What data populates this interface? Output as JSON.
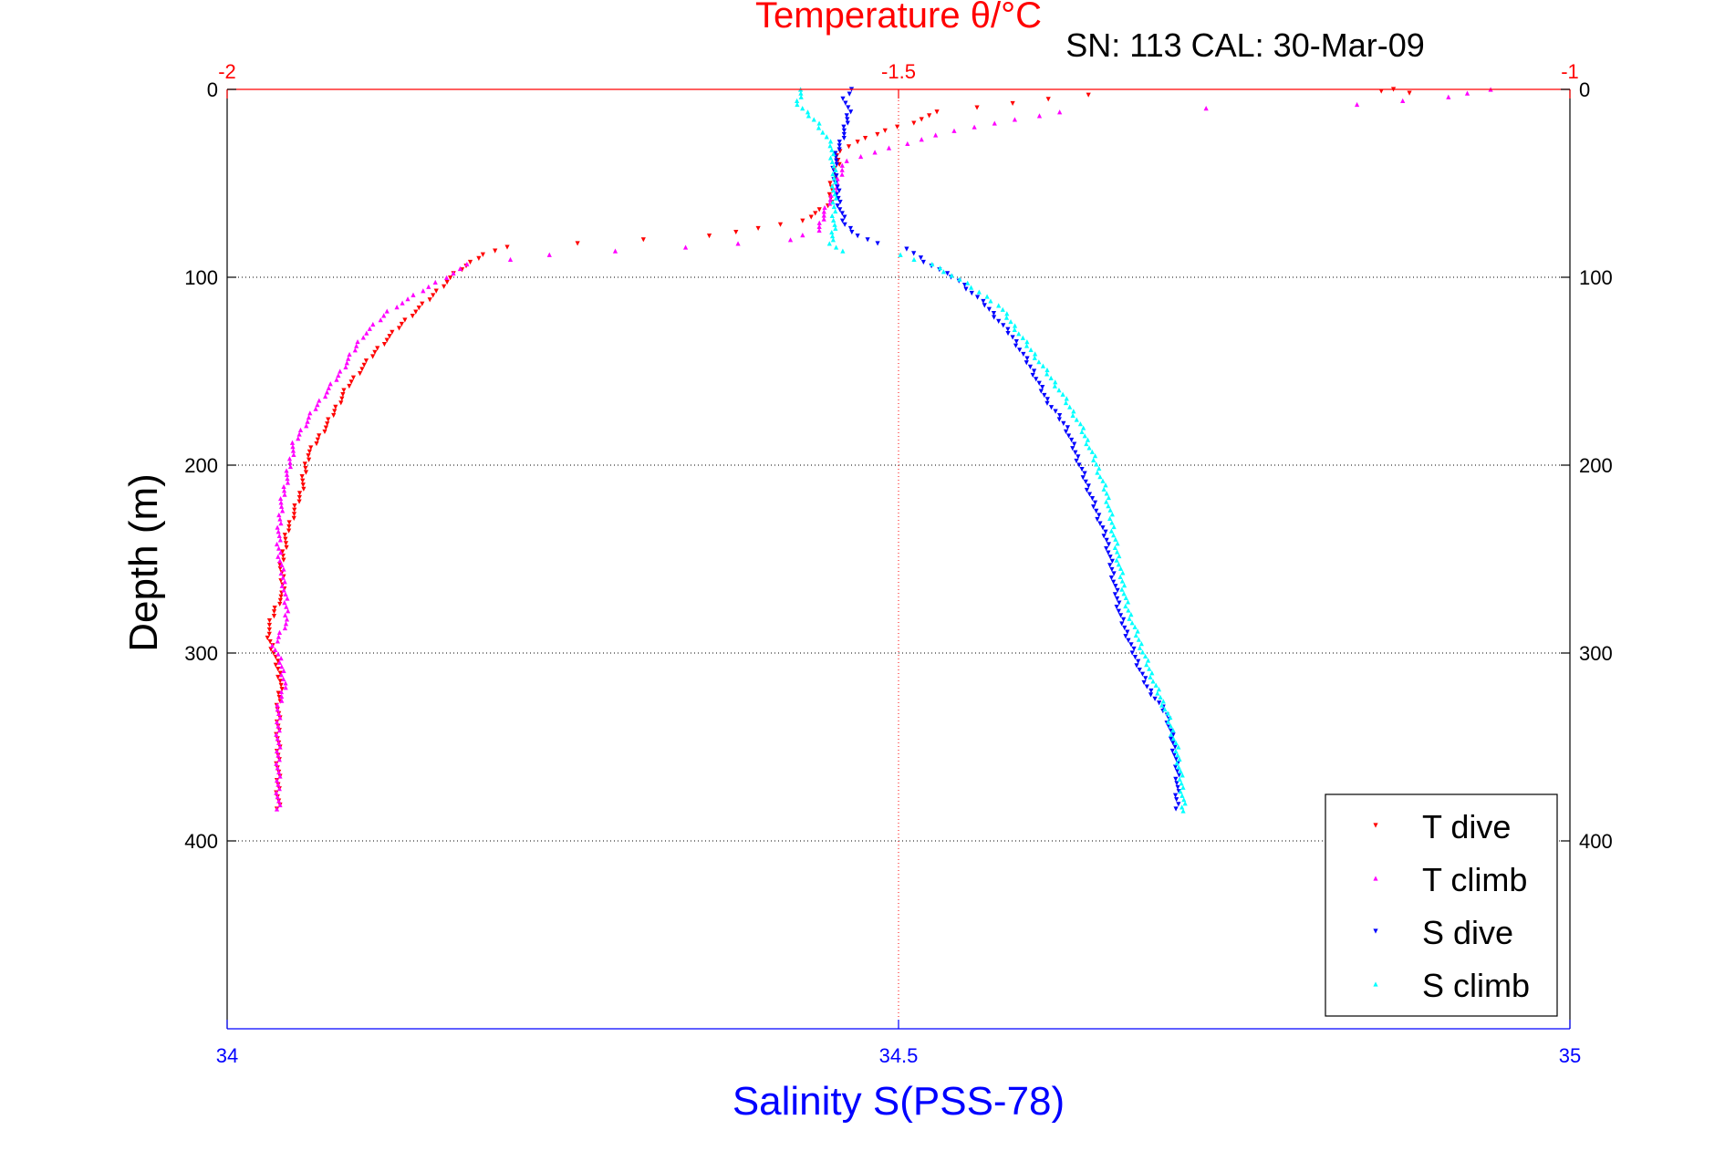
{
  "chart_data": {
    "type": "scatter",
    "title": "Temperature θ/°C",
    "subtitle": "SN: 113  CAL: 30-Mar-09",
    "xlabel_bottom": "Salinity S(PSS-78)",
    "xlabel_top": "",
    "ylabel": "Depth (m)",
    "x_bottom": {
      "label": "Salinity S(PSS-78)",
      "lim": [
        34,
        35
      ],
      "ticks": [
        34,
        34.5,
        35
      ],
      "tick_labels": [
        "34",
        "34.5",
        "35"
      ],
      "color": "#0000ff"
    },
    "x_top": {
      "label": "Temperature θ/°C",
      "lim": [
        -2,
        -1
      ],
      "ticks": [
        -2,
        -1.5,
        -1
      ],
      "tick_labels": [
        "-2",
        "-1.5",
        "-1"
      ],
      "color": "#ff0000"
    },
    "y": {
      "label": "Depth (m)",
      "lim": [
        0,
        500
      ],
      "reversed": true,
      "ticks": [
        0,
        100,
        200,
        300,
        400
      ],
      "tick_labels": [
        "0",
        "100",
        "200",
        "300",
        "400"
      ]
    },
    "grid": true,
    "legend_position": "bottom-right",
    "series": [
      {
        "name": "T dive",
        "axis": "temperature",
        "color": "#ff0000",
        "marker": "triangle-down",
        "points": [
          [
            -1.13,
            0
          ],
          [
            -1.14,
            1
          ],
          [
            -1.12,
            2
          ],
          [
            -1.36,
            3
          ],
          [
            -1.47,
            12
          ],
          [
            -1.49,
            18
          ],
          [
            -1.51,
            22
          ],
          [
            -1.53,
            28
          ],
          [
            -1.545,
            33
          ],
          [
            -1.545,
            40
          ],
          [
            -1.55,
            50
          ],
          [
            -1.55,
            60
          ],
          [
            -1.57,
            70
          ],
          [
            -1.64,
            78
          ],
          [
            -1.74,
            82
          ],
          [
            -1.79,
            84
          ],
          [
            -1.81,
            88
          ],
          [
            -1.83,
            98
          ],
          [
            -1.85,
            112
          ],
          [
            -1.87,
            125
          ],
          [
            -1.89,
            140
          ],
          [
            -1.91,
            158
          ],
          [
            -1.925,
            178
          ],
          [
            -1.94,
            195
          ],
          [
            -1.945,
            215
          ],
          [
            -1.955,
            235
          ],
          [
            -1.96,
            255
          ],
          [
            -1.958,
            268
          ],
          [
            -1.965,
            278
          ],
          [
            -1.97,
            290
          ],
          [
            -1.965,
            300
          ],
          [
            -1.96,
            315
          ],
          [
            -1.962,
            330
          ],
          [
            -1.962,
            350
          ],
          [
            -1.962,
            370
          ],
          [
            -1.962,
            383
          ]
        ]
      },
      {
        "name": "T climb",
        "axis": "temperature",
        "color": "#ff00ff",
        "marker": "triangle-up",
        "points": [
          [
            -1.06,
            0
          ],
          [
            -1.09,
            4
          ],
          [
            -1.16,
            8
          ],
          [
            -1.27,
            10
          ],
          [
            -1.38,
            12
          ],
          [
            -1.46,
            22
          ],
          [
            -1.54,
            38
          ],
          [
            -1.545,
            50
          ],
          [
            -1.555,
            65
          ],
          [
            -1.56,
            75
          ],
          [
            -1.58,
            80
          ],
          [
            -1.66,
            84
          ],
          [
            -1.76,
            88
          ],
          [
            -1.82,
            93
          ],
          [
            -1.85,
            105
          ],
          [
            -1.88,
            118
          ],
          [
            -1.9,
            132
          ],
          [
            -1.915,
            150
          ],
          [
            -1.935,
            170
          ],
          [
            -1.95,
            188
          ],
          [
            -1.955,
            205
          ],
          [
            -1.96,
            222
          ],
          [
            -1.962,
            242
          ],
          [
            -1.958,
            262
          ],
          [
            -1.955,
            282
          ],
          [
            -1.965,
            296
          ],
          [
            -1.96,
            305
          ],
          [
            -1.957,
            316
          ],
          [
            -1.962,
            330
          ],
          [
            -1.962,
            350
          ],
          [
            -1.962,
            370
          ],
          [
            -1.962,
            383
          ]
        ]
      },
      {
        "name": "S dive",
        "axis": "salinity",
        "color": "#0000ff",
        "marker": "triangle-down",
        "points": [
          [
            34.465,
            0
          ],
          [
            34.46,
            5
          ],
          [
            34.463,
            12
          ],
          [
            34.46,
            22
          ],
          [
            34.455,
            32
          ],
          [
            34.452,
            42
          ],
          [
            34.454,
            52
          ],
          [
            34.456,
            62
          ],
          [
            34.46,
            72
          ],
          [
            34.47,
            78
          ],
          [
            34.483,
            82
          ],
          [
            34.507,
            85
          ],
          [
            34.52,
            92
          ],
          [
            34.545,
            102
          ],
          [
            34.565,
            115
          ],
          [
            34.585,
            132
          ],
          [
            34.6,
            150
          ],
          [
            34.61,
            165
          ],
          [
            34.625,
            180
          ],
          [
            34.635,
            200
          ],
          [
            34.645,
            220
          ],
          [
            34.655,
            240
          ],
          [
            34.66,
            260
          ],
          [
            34.665,
            280
          ],
          [
            34.675,
            300
          ],
          [
            34.685,
            318
          ],
          [
            34.7,
            333
          ],
          [
            34.705,
            350
          ],
          [
            34.708,
            365
          ],
          [
            34.707,
            378
          ],
          [
            34.708,
            383
          ]
        ]
      },
      {
        "name": "S climb",
        "axis": "salinity",
        "color": "#00ffff",
        "marker": "triangle-up",
        "points": [
          [
            34.428,
            0
          ],
          [
            34.425,
            8
          ],
          [
            34.44,
            18
          ],
          [
            34.45,
            30
          ],
          [
            34.452,
            45
          ],
          [
            34.452,
            60
          ],
          [
            34.452,
            72
          ],
          [
            34.45,
            82
          ],
          [
            34.458,
            86
          ],
          [
            34.5,
            88
          ],
          [
            34.525,
            93
          ],
          [
            34.55,
            103
          ],
          [
            34.575,
            115
          ],
          [
            34.59,
            130
          ],
          [
            34.605,
            145
          ],
          [
            34.62,
            160
          ],
          [
            34.635,
            178
          ],
          [
            34.645,
            195
          ],
          [
            34.655,
            215
          ],
          [
            34.66,
            235
          ],
          [
            34.665,
            255
          ],
          [
            34.67,
            275
          ],
          [
            34.68,
            295
          ],
          [
            34.69,
            315
          ],
          [
            34.7,
            332
          ],
          [
            34.707,
            350
          ],
          [
            34.71,
            365
          ],
          [
            34.712,
            378
          ],
          [
            34.712,
            384
          ]
        ]
      }
    ]
  }
}
